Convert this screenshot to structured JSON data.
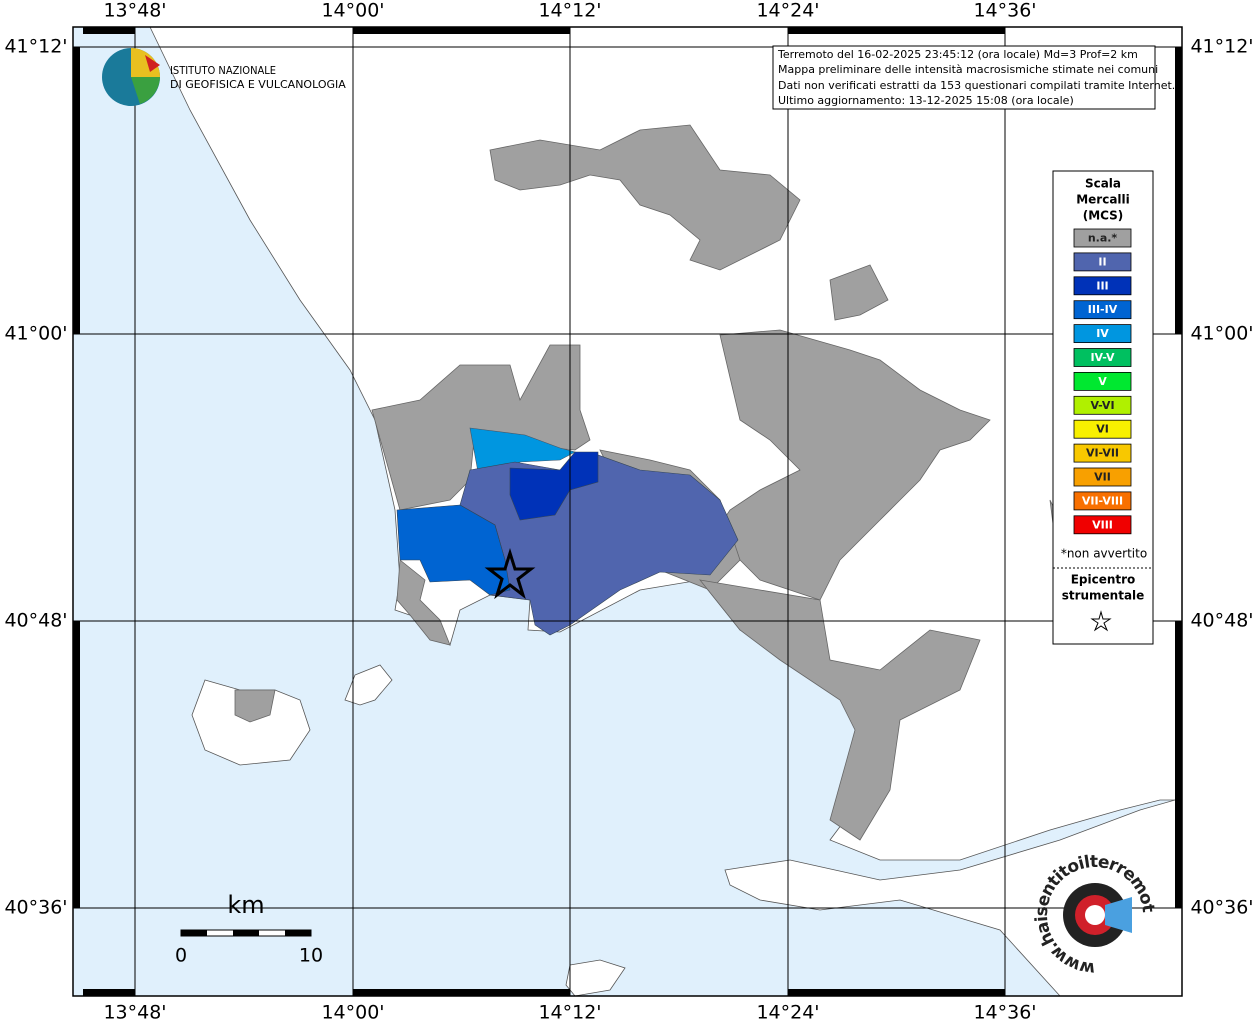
{
  "header": {
    "institute": [
      "ISTITUTO NAZIONALE",
      "DI GEOFISICA E VULCANOLOGIA"
    ]
  },
  "info_box": {
    "lines": [
      "Terremoto del 16-02-2025 23:45:12 (ora locale) Md=3 Prof=2 km",
      "Mappa preliminare delle intensità macrosismiche stimate nei comuni",
      "Dati non verificati estratti da 153 questionari compilati tramite Internet.",
      "Ultimo aggiornamento: 13-12-2025 15:08 (ora locale)"
    ]
  },
  "axes": {
    "longitude_labels": [
      "13°48'",
      "14°00'",
      "14°12'",
      "14°24'",
      "14°36'"
    ],
    "latitude_labels": [
      "41°12'",
      "41°00'",
      "40°48'",
      "40°36'"
    ]
  },
  "legend": {
    "title": [
      "Scala",
      "Mercalli",
      "(MCS)"
    ],
    "items": [
      {
        "label": "n.a.*",
        "color": "#a0a0a0"
      },
      {
        "label": "II",
        "color": "#5065ae"
      },
      {
        "label": "III",
        "color": "#0032b8"
      },
      {
        "label": "III-IV",
        "color": "#0064d2"
      },
      {
        "label": "IV",
        "color": "#0096e0"
      },
      {
        "label": "IV-V",
        "color": "#00c060"
      },
      {
        "label": "V",
        "color": "#00e830"
      },
      {
        "label": "V-VI",
        "color": "#b0f000"
      },
      {
        "label": "VI",
        "color": "#f8f000"
      },
      {
        "label": "VI-VII",
        "color": "#f8c800"
      },
      {
        "label": "VII",
        "color": "#f8a000"
      },
      {
        "label": "VII-VIII",
        "color": "#f87000"
      },
      {
        "label": "VIII",
        "color": "#f00000"
      }
    ],
    "note": "*non avvertito",
    "epicenter_title": [
      "Epicentro",
      "strumentale"
    ]
  },
  "scale_bar": {
    "unit": "km",
    "labels": [
      0,
      10
    ]
  },
  "watermark": {
    "text": "www.haisentitoilterremoto.it"
  }
}
